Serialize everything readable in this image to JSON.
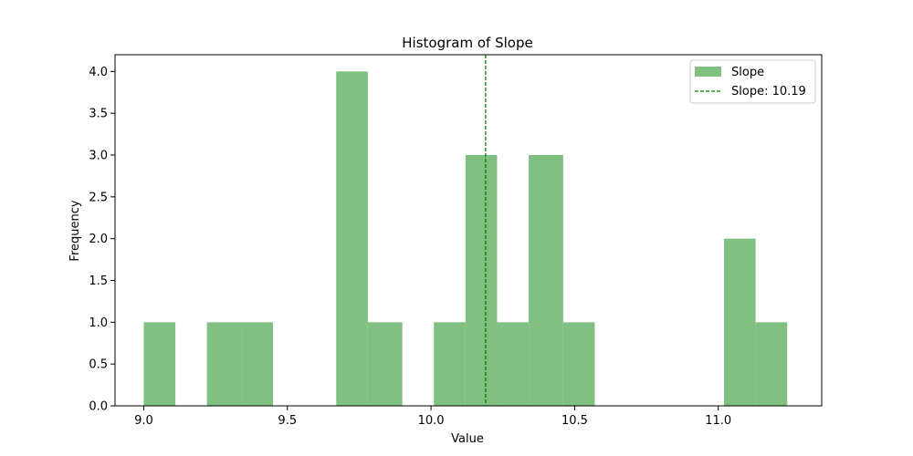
{
  "chart_data": {
    "type": "bar",
    "title": "Histogram of Slope",
    "xlabel": "Value",
    "ylabel": "Frequency",
    "xlim": [
      8.9,
      11.36
    ],
    "ylim": [
      0,
      4.2
    ],
    "xticks": [
      9.0,
      9.5,
      10.0,
      10.5,
      11.0
    ],
    "xtick_labels": [
      "9.0",
      "9.5",
      "10.0",
      "10.5",
      "11.0"
    ],
    "yticks": [
      0,
      0.5,
      1,
      1.5,
      2,
      2.5,
      3,
      3.5,
      4
    ],
    "ytick_labels": [
      "0.0",
      "0.5",
      "1.0",
      "1.5",
      "2.0",
      "2.5",
      "3.0",
      "3.5",
      "4.0"
    ],
    "bins": [
      {
        "start": 9.0,
        "end": 9.11,
        "count": 1
      },
      {
        "start": 9.11,
        "end": 9.22,
        "count": 0
      },
      {
        "start": 9.22,
        "end": 9.34,
        "count": 1
      },
      {
        "start": 9.34,
        "end": 9.45,
        "count": 1
      },
      {
        "start": 9.45,
        "end": 9.56,
        "count": 0
      },
      {
        "start": 9.56,
        "end": 9.67,
        "count": 0
      },
      {
        "start": 9.67,
        "end": 9.78,
        "count": 4
      },
      {
        "start": 9.78,
        "end": 9.9,
        "count": 1
      },
      {
        "start": 9.9,
        "end": 10.01,
        "count": 0
      },
      {
        "start": 10.01,
        "end": 10.12,
        "count": 1
      },
      {
        "start": 10.12,
        "end": 10.23,
        "count": 3
      },
      {
        "start": 10.23,
        "end": 10.34,
        "count": 1
      },
      {
        "start": 10.34,
        "end": 10.46,
        "count": 3
      },
      {
        "start": 10.46,
        "end": 10.57,
        "count": 1
      },
      {
        "start": 10.57,
        "end": 10.68,
        "count": 0
      },
      {
        "start": 10.68,
        "end": 10.79,
        "count": 0
      },
      {
        "start": 10.79,
        "end": 10.9,
        "count": 0
      },
      {
        "start": 10.9,
        "end": 11.02,
        "count": 0
      },
      {
        "start": 11.02,
        "end": 11.13,
        "count": 2
      },
      {
        "start": 11.13,
        "end": 11.24,
        "count": 1
      }
    ],
    "bar_color": "#80c080",
    "reference_line": {
      "value": 10.19,
      "color": "#008000",
      "style": "dashed"
    },
    "legend": {
      "placement": "top-right",
      "entries": [
        {
          "label": "Slope",
          "kind": "patch",
          "color": "#80c080"
        },
        {
          "label": "Slope: 10.19",
          "kind": "dashed-line",
          "color": "#008000"
        }
      ]
    },
    "grid": false
  }
}
